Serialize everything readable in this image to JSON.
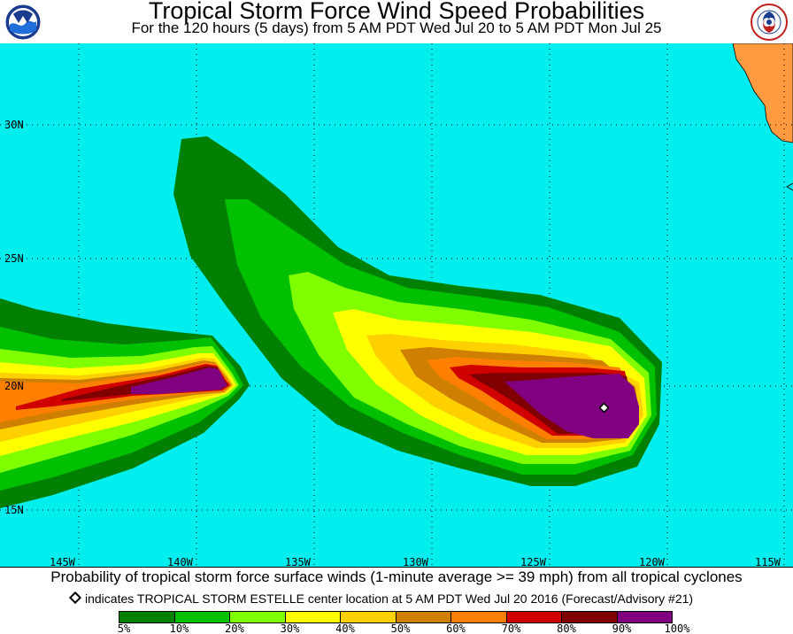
{
  "header": {
    "title": "Tropical Storm Force Wind Speed Probabilities",
    "subtitle": "For the 120 hours (5 days) from 5 AM PDT Wed Jul 20 to 5 AM PDT Mon Jul 25",
    "left_logo": {
      "lettering": "NOAA",
      "icon": "noaa-logo"
    },
    "right_logo": {
      "lettering": "NATIONAL WEATHER SERVICE",
      "icon": "nws-logo"
    }
  },
  "map": {
    "ocean_color": "#00eeee",
    "land_color": "#ff9a40",
    "lat_labels": [
      "30N",
      "25N",
      "20N",
      "15N"
    ],
    "lon_labels": [
      "145W",
      "140W",
      "135W",
      "130W",
      "125W",
      "120W",
      "115W"
    ],
    "storm_marker": {
      "name": "TROPICAL STORM ESTELLE",
      "lat": 19.3,
      "lon": -122.3
    }
  },
  "footer": {
    "caption": "Probability of tropical storm force surface winds (1-minute average >= 39 mph) from all tropical cyclones",
    "note": "indicates TROPICAL STORM ESTELLE center location at 5 AM PDT Wed Jul 20 2016 (Forecast/Advisory #21)"
  },
  "legend": {
    "colors": [
      "#008000",
      "#00c000",
      "#80ff00",
      "#ffff00",
      "#ffd000",
      "#d08000",
      "#ff8000",
      "#d00000",
      "#800000",
      "#800080"
    ],
    "labels": [
      "5%",
      "10%",
      "20%",
      "30%",
      "40%",
      "50%",
      "60%",
      "70%",
      "80%",
      "90%",
      "100%"
    ]
  }
}
